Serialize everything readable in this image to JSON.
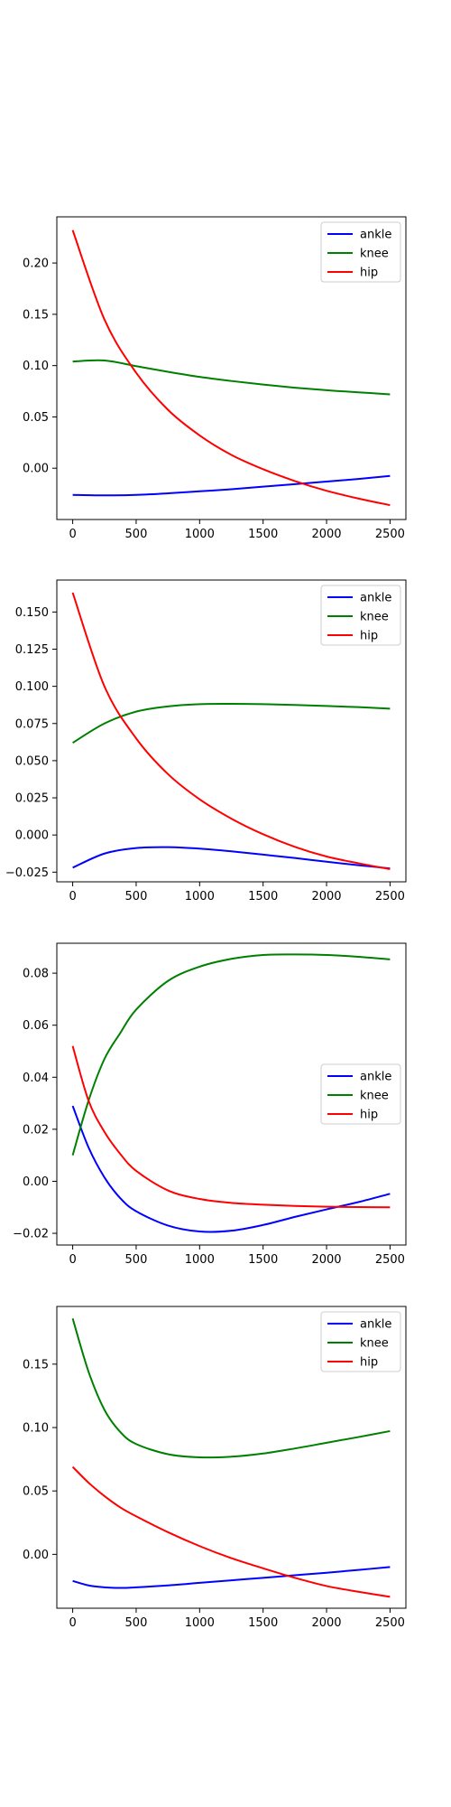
{
  "chart_data": [
    {
      "type": "line",
      "xlim": [
        -125,
        2625
      ],
      "ylim": [
        -0.05,
        0.245
      ],
      "xticks": [
        0,
        500,
        1000,
        1500,
        2000,
        2500
      ],
      "xtick_labels": [
        "0",
        "500",
        "1000",
        "1500",
        "2000",
        "2500"
      ],
      "yticks": [
        0.0,
        0.05,
        0.1,
        0.15,
        0.2
      ],
      "ytick_labels": [
        "0.00",
        "0.05",
        "0.10",
        "0.15",
        "0.20"
      ],
      "legend_position": "upper right",
      "x": [
        0,
        250,
        500,
        750,
        1000,
        1250,
        1500,
        1750,
        2000,
        2250,
        2500
      ],
      "series": [
        {
          "name": "ankle",
          "color": "#0000ff",
          "values": [
            -0.026,
            -0.0265,
            -0.026,
            -0.0245,
            -0.0225,
            -0.0205,
            -0.018,
            -0.0155,
            -0.013,
            -0.0105,
            -0.0075
          ]
        },
        {
          "name": "knee",
          "color": "#008000",
          "values": [
            0.104,
            0.105,
            0.0995,
            0.094,
            0.089,
            0.085,
            0.0815,
            0.0785,
            0.076,
            0.074,
            0.072
          ]
        },
        {
          "name": "hip",
          "color": "#ff0000",
          "values": [
            0.232,
            0.145,
            0.093,
            0.057,
            0.032,
            0.013,
            -0.001,
            -0.0125,
            -0.022,
            -0.0295,
            -0.036
          ]
        }
      ]
    },
    {
      "type": "line",
      "xlim": [
        -125,
        2625
      ],
      "ylim": [
        -0.0315,
        0.1715
      ],
      "xticks": [
        0,
        500,
        1000,
        1500,
        2000,
        2500
      ],
      "xtick_labels": [
        "0",
        "500",
        "1000",
        "1500",
        "2000",
        "2500"
      ],
      "yticks": [
        -0.025,
        0.0,
        0.025,
        0.05,
        0.075,
        0.1,
        0.125,
        0.15
      ],
      "ytick_labels": [
        "−0.025",
        "0.000",
        "0.025",
        "0.050",
        "0.075",
        "0.100",
        "0.125",
        "0.150"
      ],
      "legend_position": "upper right",
      "x": [
        0,
        250,
        500,
        750,
        1000,
        1250,
        1500,
        1750,
        2000,
        2250,
        2500
      ],
      "series": [
        {
          "name": "ankle",
          "color": "#0000ff",
          "values": [
            -0.022,
            -0.0125,
            -0.0088,
            -0.0082,
            -0.0092,
            -0.011,
            -0.0132,
            -0.0155,
            -0.018,
            -0.0203,
            -0.0225
          ]
        },
        {
          "name": "knee",
          "color": "#008000",
          "values": [
            0.062,
            0.075,
            0.083,
            0.0865,
            0.088,
            0.0882,
            0.088,
            0.0875,
            0.0868,
            0.086,
            0.085
          ]
        },
        {
          "name": "hip",
          "color": "#ff0000",
          "values": [
            0.163,
            0.1,
            0.065,
            0.041,
            0.024,
            0.011,
            0.0005,
            -0.008,
            -0.0145,
            -0.019,
            -0.023
          ]
        }
      ]
    },
    {
      "type": "line",
      "xlim": [
        -125,
        2625
      ],
      "ylim": [
        -0.0245,
        0.0915
      ],
      "xticks": [
        0,
        500,
        1000,
        1500,
        2000,
        2500
      ],
      "xtick_labels": [
        "0",
        "500",
        "1000",
        "1500",
        "2000",
        "2500"
      ],
      "yticks": [
        -0.02,
        0.0,
        0.02,
        0.04,
        0.06,
        0.08
      ],
      "ytick_labels": [
        "−0.02",
        "0.00",
        "0.02",
        "0.04",
        "0.06",
        "0.08"
      ],
      "legend_position": "center right",
      "x": [
        0,
        125,
        250,
        375,
        500,
        750,
        1000,
        1250,
        1500,
        1750,
        2000,
        2250,
        2500
      ],
      "series": [
        {
          "name": "ankle",
          "color": "#0000ff",
          "values": [
            0.029,
            0.013,
            0.0015,
            -0.0065,
            -0.0115,
            -0.017,
            -0.0193,
            -0.019,
            -0.0168,
            -0.0137,
            -0.0108,
            -0.008,
            -0.0048
          ]
        },
        {
          "name": "knee",
          "color": "#008000",
          "values": [
            0.01,
            0.031,
            0.047,
            0.057,
            0.066,
            0.077,
            0.0825,
            0.0855,
            0.087,
            0.0872,
            0.087,
            0.0863,
            0.0853
          ]
        },
        {
          "name": "hip",
          "color": "#ff0000",
          "values": [
            0.052,
            0.031,
            0.019,
            0.0105,
            0.004,
            -0.0035,
            -0.0068,
            -0.0083,
            -0.009,
            -0.0095,
            -0.0098,
            -0.0099,
            -0.01
          ]
        }
      ]
    },
    {
      "type": "line",
      "xlim": [
        -125,
        2625
      ],
      "ylim": [
        -0.0425,
        0.1955
      ],
      "xticks": [
        0,
        500,
        1000,
        1500,
        2000,
        2500
      ],
      "xtick_labels": [
        "0",
        "500",
        "1000",
        "1500",
        "2000",
        "2500"
      ],
      "yticks": [
        0.0,
        0.05,
        0.1,
        0.15
      ],
      "ytick_labels": [
        "0.00",
        "0.05",
        "0.10",
        "0.15"
      ],
      "legend_position": "upper right",
      "x": [
        0,
        125,
        250,
        375,
        500,
        750,
        1000,
        1250,
        1500,
        1750,
        2000,
        2250,
        2500
      ],
      "series": [
        {
          "name": "ankle",
          "color": "#0000ff",
          "values": [
            -0.021,
            -0.0245,
            -0.026,
            -0.0265,
            -0.026,
            -0.0245,
            -0.0225,
            -0.0205,
            -0.0185,
            -0.0165,
            -0.0145,
            -0.0123,
            -0.01
          ]
        },
        {
          "name": "knee",
          "color": "#008000",
          "values": [
            0.186,
            0.144,
            0.114,
            0.0965,
            0.087,
            0.079,
            0.0765,
            0.077,
            0.0795,
            0.0835,
            0.088,
            0.0925,
            0.0972
          ]
        },
        {
          "name": "hip",
          "color": "#ff0000",
          "values": [
            0.069,
            0.0565,
            0.046,
            0.037,
            0.03,
            0.0175,
            0.0065,
            -0.003,
            -0.011,
            -0.0185,
            -0.025,
            -0.0295,
            -0.0335
          ]
        }
      ]
    }
  ]
}
